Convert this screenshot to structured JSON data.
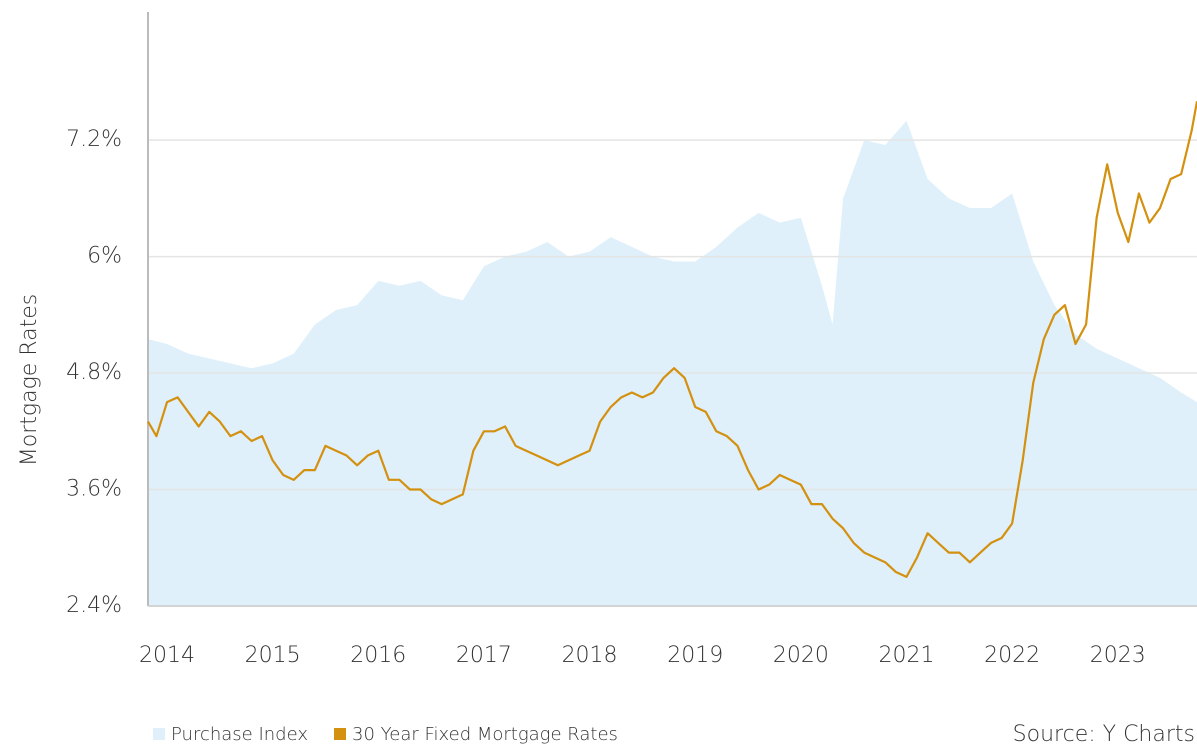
{
  "chart_data": {
    "type": "line",
    "y_label": "Mortgage Rates",
    "source": "Source: Y Charts",
    "xlim": [
      2013.82,
      2023.75
    ],
    "xticks": [
      2014,
      2015,
      2016,
      2017,
      2018,
      2019,
      2020,
      2021,
      2022,
      2023
    ],
    "ylim": [
      2.4,
      8.52
    ],
    "yticks": [
      {
        "value": 2.4,
        "label": "2.4%"
      },
      {
        "value": 3.6,
        "label": "3.6%"
      },
      {
        "value": 4.8,
        "label": "4.8%"
      },
      {
        "value": 6,
        "label": "6%"
      },
      {
        "value": 7.2,
        "label": "7.2%"
      }
    ],
    "grid": true,
    "series": [
      {
        "name": "Purchase Index",
        "color": "#dff0fb",
        "style": "area",
        "x": [
          2013.82,
          2014.0,
          2014.2,
          2014.4,
          2014.6,
          2014.8,
          2015.0,
          2015.2,
          2015.4,
          2015.6,
          2015.8,
          2016.0,
          2016.2,
          2016.4,
          2016.6,
          2016.8,
          2017.0,
          2017.2,
          2017.4,
          2017.6,
          2017.8,
          2018.0,
          2018.2,
          2018.4,
          2018.6,
          2018.8,
          2019.0,
          2019.2,
          2019.4,
          2019.6,
          2019.8,
          2020.0,
          2020.2,
          2020.3,
          2020.4,
          2020.6,
          2020.8,
          2021.0,
          2021.2,
          2021.4,
          2021.6,
          2021.8,
          2022.0,
          2022.2,
          2022.4,
          2022.6,
          2022.8,
          2023.0,
          2023.2,
          2023.4,
          2023.6,
          2023.75
        ],
        "values": [
          5.15,
          5.1,
          5.0,
          4.95,
          4.9,
          4.85,
          4.9,
          5.0,
          5.3,
          5.45,
          5.5,
          5.75,
          5.7,
          5.75,
          5.6,
          5.55,
          5.9,
          6.0,
          6.05,
          6.15,
          6.0,
          6.05,
          6.2,
          6.1,
          6.0,
          5.95,
          5.95,
          6.1,
          6.3,
          6.45,
          6.35,
          6.4,
          5.7,
          5.3,
          6.6,
          7.2,
          7.15,
          7.4,
          6.8,
          6.6,
          6.5,
          6.5,
          6.65,
          5.95,
          5.5,
          5.2,
          5.05,
          4.95,
          4.85,
          4.75,
          4.6,
          4.5
        ]
      },
      {
        "name": "30 Year Fixed Mortgage Rates",
        "color": "#d4900f",
        "style": "line",
        "x": [
          2013.82,
          2013.9,
          2014.0,
          2014.1,
          2014.2,
          2014.3,
          2014.4,
          2014.5,
          2014.6,
          2014.7,
          2014.8,
          2014.9,
          2015.0,
          2015.1,
          2015.2,
          2015.3,
          2015.4,
          2015.5,
          2015.6,
          2015.7,
          2015.8,
          2015.9,
          2016.0,
          2016.1,
          2016.2,
          2016.3,
          2016.4,
          2016.5,
          2016.6,
          2016.7,
          2016.8,
          2016.9,
          2017.0,
          2017.1,
          2017.2,
          2017.3,
          2017.4,
          2017.5,
          2017.6,
          2017.7,
          2017.8,
          2017.9,
          2018.0,
          2018.1,
          2018.2,
          2018.3,
          2018.4,
          2018.5,
          2018.6,
          2018.7,
          2018.8,
          2018.9,
          2019.0,
          2019.1,
          2019.2,
          2019.3,
          2019.4,
          2019.5,
          2019.6,
          2019.7,
          2019.8,
          2019.9,
          2020.0,
          2020.1,
          2020.2,
          2020.3,
          2020.4,
          2020.5,
          2020.6,
          2020.7,
          2020.8,
          2020.9,
          2021.0,
          2021.1,
          2021.2,
          2021.3,
          2021.4,
          2021.5,
          2021.6,
          2021.7,
          2021.8,
          2021.9,
          2022.0,
          2022.1,
          2022.2,
          2022.3,
          2022.4,
          2022.5,
          2022.6,
          2022.7,
          2022.8,
          2022.9,
          2023.0,
          2023.1,
          2023.2,
          2023.3,
          2023.4,
          2023.5,
          2023.6,
          2023.7,
          2023.75
        ],
        "values": [
          4.3,
          4.15,
          4.5,
          4.55,
          4.4,
          4.25,
          4.4,
          4.3,
          4.15,
          4.2,
          4.1,
          4.15,
          3.9,
          3.75,
          3.7,
          3.8,
          3.8,
          4.05,
          4.0,
          3.95,
          3.85,
          3.95,
          4.0,
          3.7,
          3.7,
          3.6,
          3.6,
          3.5,
          3.45,
          3.5,
          3.55,
          4.0,
          4.2,
          4.2,
          4.25,
          4.05,
          4.0,
          3.95,
          3.9,
          3.85,
          3.9,
          3.95,
          4.0,
          4.3,
          4.45,
          4.55,
          4.6,
          4.55,
          4.6,
          4.75,
          4.85,
          4.75,
          4.45,
          4.4,
          4.2,
          4.15,
          4.05,
          3.8,
          3.6,
          3.65,
          3.75,
          3.7,
          3.65,
          3.45,
          3.45,
          3.3,
          3.2,
          3.05,
          2.95,
          2.9,
          2.85,
          2.75,
          2.7,
          2.9,
          3.15,
          3.05,
          2.95,
          2.95,
          2.85,
          2.95,
          3.05,
          3.1,
          3.25,
          3.9,
          4.7,
          5.15,
          5.4,
          5.5,
          5.1,
          5.3,
          6.4,
          6.95,
          6.45,
          6.15,
          6.65,
          6.35,
          6.5,
          6.8,
          6.85,
          7.3,
          7.6
        ]
      }
    ]
  }
}
